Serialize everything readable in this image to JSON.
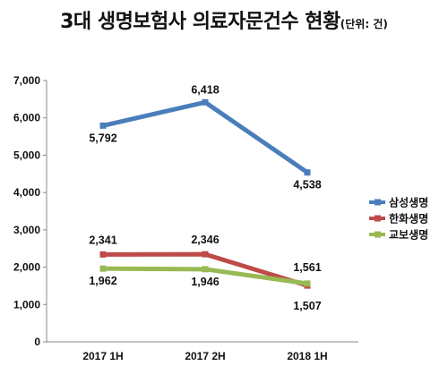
{
  "title": {
    "main": "3대 생명보험사 의료자문건수 현황",
    "unit": "(단위: 건)"
  },
  "chart_data": {
    "type": "line",
    "title": "3대 생명보험사 의료자문건수 현황",
    "unit": "(단위: 건)",
    "categories": [
      "2017 1H",
      "2017 2H",
      "2018 1H"
    ],
    "y_ticks": [
      "0",
      "1,000",
      "2,000",
      "3,000",
      "4,000",
      "5,000",
      "6,000",
      "7,000"
    ],
    "ylim": [
      0,
      7000
    ],
    "grid": false,
    "legend_position": "right",
    "series": [
      {
        "name": "삼성생명",
        "color": "#4a7ebb",
        "values": [
          5792,
          6418,
          4538
        ],
        "labels": [
          "5,792",
          "6,418",
          "4,538"
        ]
      },
      {
        "name": "한화생명",
        "color": "#be4b48",
        "values": [
          2341,
          2346,
          1507
        ],
        "labels": [
          "2,341",
          "2,346",
          "1,507"
        ]
      },
      {
        "name": "교보생명",
        "color": "#98b954",
        "values": [
          1962,
          1946,
          1561
        ],
        "labels": [
          "1,962",
          "1,946",
          "1,561"
        ]
      }
    ]
  }
}
